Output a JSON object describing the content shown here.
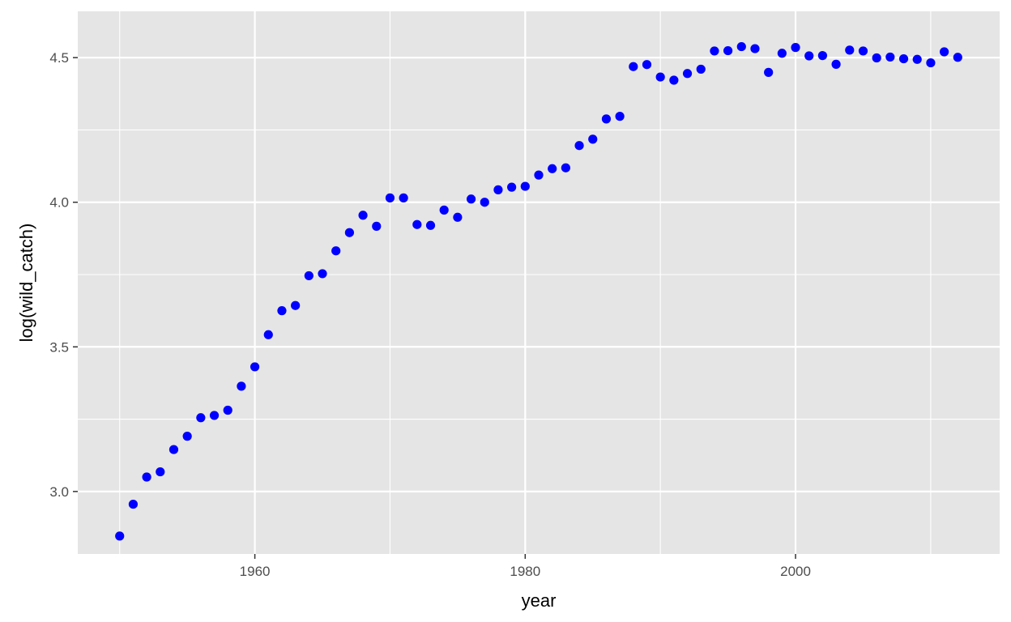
{
  "chart_data": {
    "type": "scatter",
    "title": "",
    "xlabel": "year",
    "ylabel": "log(wild_catch)",
    "xlim": [
      1946.9,
      2015.1
    ],
    "ylim": [
      2.784,
      4.66
    ],
    "x_major_ticks": [
      1960,
      1980,
      2000
    ],
    "x_minor_ticks": [
      1950,
      1970,
      1990,
      2010
    ],
    "y_major_ticks": [
      3.0,
      3.5,
      4.0,
      4.5
    ],
    "y_minor_ticks": [
      3.25,
      3.75,
      4.25
    ],
    "x_tick_labels": [
      "1960",
      "1980",
      "2000"
    ],
    "y_tick_labels": [
      "3.0",
      "3.5",
      "4.0",
      "4.5"
    ],
    "grid": true,
    "legend": "none",
    "colors": {
      "panel": "#e5e5e5",
      "grid": "#ffffff",
      "point": "#0000ff"
    },
    "series": [
      {
        "x": [
          1950,
          1951,
          1952,
          1953,
          1954,
          1955,
          1956,
          1957,
          1958,
          1959,
          1960,
          1961,
          1962,
          1963,
          1964,
          1965,
          1966,
          1967,
          1968,
          1969,
          1970,
          1971,
          1972,
          1973,
          1974,
          1975,
          1976,
          1977,
          1978,
          1979,
          1980,
          1981,
          1982,
          1983,
          1984,
          1985,
          1986,
          1987,
          1988,
          1989,
          1990,
          1991,
          1992,
          1993,
          1994,
          1995,
          1996,
          1997,
          1998,
          1999,
          2000,
          2001,
          2002,
          2003,
          2004,
          2005,
          2006,
          2007,
          2008,
          2009,
          2010,
          2011,
          2012
        ],
        "y": [
          2.846,
          2.956,
          3.05,
          3.068,
          3.145,
          3.191,
          3.255,
          3.263,
          3.281,
          3.364,
          3.431,
          3.542,
          3.625,
          3.643,
          3.746,
          3.753,
          3.832,
          3.895,
          3.955,
          3.917,
          4.015,
          4.015,
          3.923,
          3.92,
          3.973,
          3.948,
          4.011,
          4.0,
          4.043,
          4.052,
          4.055,
          4.094,
          4.116,
          4.119,
          4.196,
          4.218,
          4.288,
          4.297,
          4.469,
          4.476,
          4.433,
          4.422,
          4.445,
          4.46,
          4.523,
          4.524,
          4.538,
          4.531,
          4.449,
          4.515,
          4.535,
          4.506,
          4.507,
          4.477,
          4.526,
          4.523,
          4.499,
          4.502,
          4.496,
          4.494,
          4.482,
          4.52,
          4.501
        ]
      }
    ]
  }
}
